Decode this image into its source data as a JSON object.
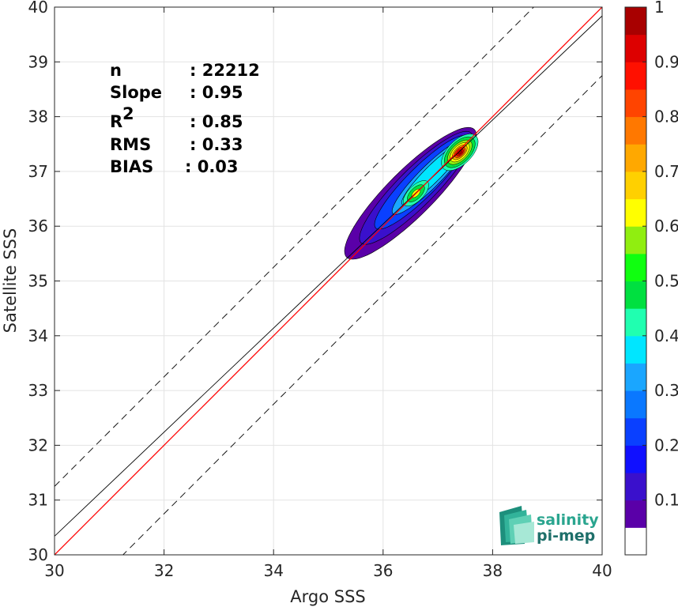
{
  "chart_data": {
    "type": "density_scatter",
    "xlabel": "Argo SSS",
    "ylabel": "Satellite SSS",
    "xlim": [
      30,
      40
    ],
    "ylim": [
      30,
      40
    ],
    "x_ticks": [
      "30",
      "32",
      "34",
      "36",
      "38",
      "40"
    ],
    "y_ticks": [
      "30",
      "31",
      "32",
      "33",
      "34",
      "35",
      "36",
      "37",
      "38",
      "39",
      "40"
    ],
    "grid": true,
    "reference_lines": {
      "one_to_one": {
        "slope": 1,
        "intercept": 0,
        "color": "#ff0000"
      },
      "fit": {
        "slope": 0.95,
        "intercept": 1.84,
        "color": "#000000"
      },
      "offset_bands": {
        "offset": 1.25,
        "style": "dashed",
        "color": "#000000"
      }
    },
    "density_peaks": [
      {
        "x": 37.4,
        "y": 37.4,
        "max_level": 1.0
      },
      {
        "x": 36.6,
        "y": 36.6,
        "max_level": 0.7
      }
    ],
    "stats": [
      {
        "label": "n",
        "value": ": 22212"
      },
      {
        "label": "Slope",
        "value": ": 0.95"
      },
      {
        "label": "R",
        "sup": "2",
        "value": ": 0.85"
      },
      {
        "label": "RMS",
        "value": ": 0.33"
      },
      {
        "label": "BIAS",
        "value": ": 0.03"
      }
    ],
    "colorbar": {
      "range": [
        0,
        1
      ],
      "tick_labels": [
        "0.1",
        "0.2",
        "0.3",
        "0.4",
        "0.5",
        "0.6",
        "0.7",
        "0.8",
        "0.9",
        "1"
      ],
      "colors": [
        "#ffffff",
        "#5a00a8",
        "#3a10cc",
        "#1010ff",
        "#0a40ff",
        "#0a78ff",
        "#1aa6ff",
        "#00e6ff",
        "#20ffb0",
        "#00e040",
        "#10ff10",
        "#90ee10",
        "#ffff00",
        "#ffd000",
        "#ffa800",
        "#ff7800",
        "#ff4400",
        "#ff1000",
        "#dd0000",
        "#a80000"
      ]
    }
  },
  "logo": {
    "line1": "salinity",
    "line2": "pi-mep"
  }
}
